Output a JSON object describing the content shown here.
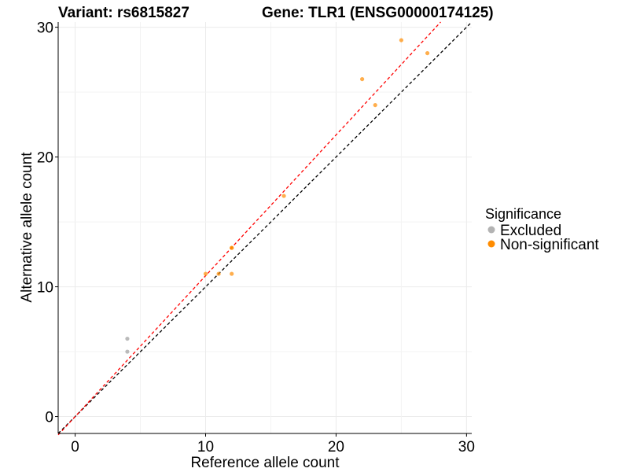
{
  "header": {
    "variant": "Variant: rs6815827",
    "gene": "Gene: TLR1 (ENSG00000174125)"
  },
  "chart_data": {
    "type": "scatter",
    "xlabel": "Reference allele count",
    "ylabel": "Alternative allele count",
    "xlim": [
      -1.3,
      30.4
    ],
    "ylim": [
      -1.3,
      30.4
    ],
    "xticks": [
      0,
      10,
      20,
      30
    ],
    "yticks": [
      0,
      10,
      20,
      30
    ],
    "grid": true,
    "legend_position": "right",
    "legend_title": "Significance",
    "series": [
      {
        "name": "Excluded",
        "color": "#b3b3b3",
        "points": [
          [
            4,
            6
          ],
          [
            4,
            5
          ]
        ]
      },
      {
        "name": "Non-significant",
        "color": "#ff8c00",
        "points": [
          [
            10,
            11
          ],
          [
            11,
            11
          ],
          [
            12,
            13
          ],
          [
            12,
            13
          ],
          [
            12,
            11
          ],
          [
            16,
            17
          ],
          [
            22,
            26
          ],
          [
            23,
            24
          ],
          [
            25,
            29
          ],
          [
            27,
            28
          ]
        ]
      }
    ],
    "reference_lines": [
      {
        "color": "#000000",
        "slope": 1.0,
        "style": "dashed"
      },
      {
        "color": "#ff0000",
        "slope": 1.085,
        "style": "dashed"
      }
    ]
  }
}
